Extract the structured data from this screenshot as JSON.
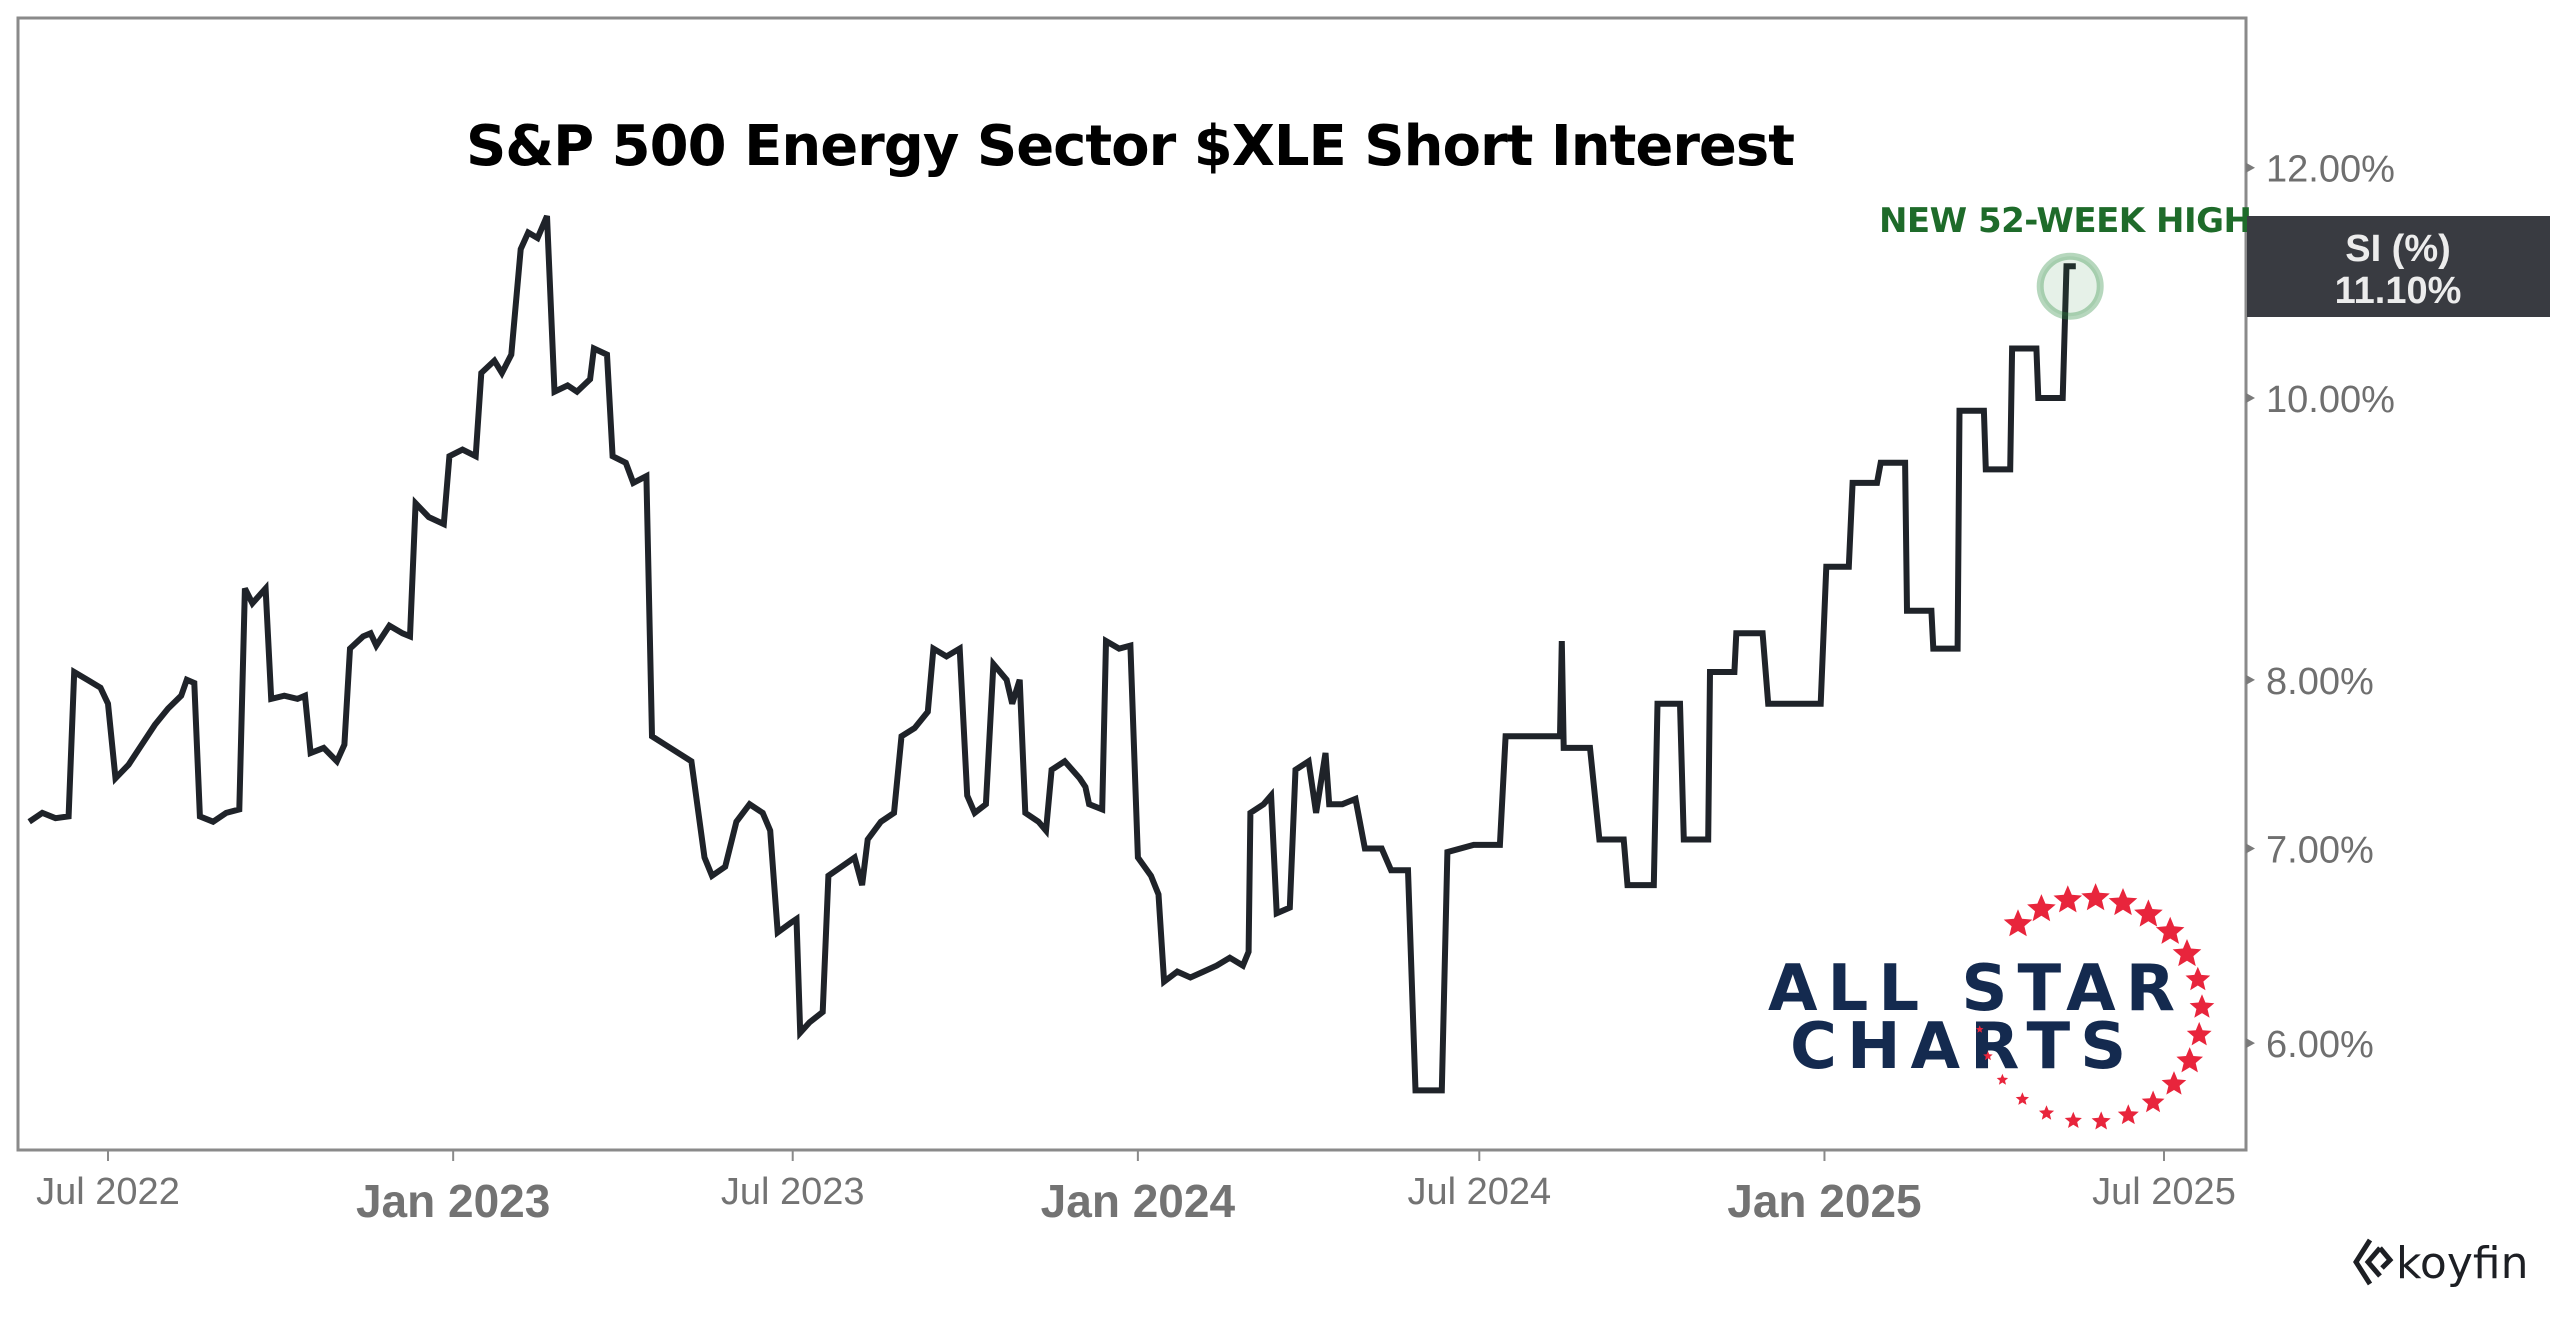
{
  "chart_data": {
    "type": "line",
    "title": "S&P 500 Energy Sector $XLE Short Interest",
    "series": [
      {
        "name": "SI (%)",
        "color": "#1f2329",
        "points": [
          [
            "2022-05-20",
            7.15
          ],
          [
            "2022-05-27",
            7.2
          ],
          [
            "2022-06-03",
            7.17
          ],
          [
            "2022-06-10",
            7.18
          ],
          [
            "2022-06-13",
            8.05
          ],
          [
            "2022-06-20",
            8.0
          ],
          [
            "2022-06-27",
            7.95
          ],
          [
            "2022-07-01",
            7.85
          ],
          [
            "2022-07-05",
            7.4
          ],
          [
            "2022-07-12",
            7.48
          ],
          [
            "2022-07-19",
            7.6
          ],
          [
            "2022-07-26",
            7.72
          ],
          [
            "2022-08-02",
            7.82
          ],
          [
            "2022-08-09",
            7.9
          ],
          [
            "2022-08-12",
            8.0
          ],
          [
            "2022-08-16",
            7.98
          ],
          [
            "2022-08-19",
            7.18
          ],
          [
            "2022-08-26",
            7.15
          ],
          [
            "2022-09-02",
            7.2
          ],
          [
            "2022-09-09",
            7.22
          ],
          [
            "2022-09-12",
            8.6
          ],
          [
            "2022-09-16",
            8.5
          ],
          [
            "2022-09-23",
            8.6
          ],
          [
            "2022-09-26",
            7.88
          ],
          [
            "2022-10-03",
            7.9
          ],
          [
            "2022-10-10",
            7.88
          ],
          [
            "2022-10-14",
            7.9
          ],
          [
            "2022-10-17",
            7.55
          ],
          [
            "2022-10-24",
            7.58
          ],
          [
            "2022-10-31",
            7.5
          ],
          [
            "2022-11-04",
            7.6
          ],
          [
            "2022-11-07",
            8.2
          ],
          [
            "2022-11-14",
            8.28
          ],
          [
            "2022-11-18",
            8.3
          ],
          [
            "2022-11-21",
            8.22
          ],
          [
            "2022-11-28",
            8.35
          ],
          [
            "2022-12-05",
            8.3
          ],
          [
            "2022-12-09",
            8.28
          ],
          [
            "2022-12-12",
            9.2
          ],
          [
            "2022-12-19",
            9.1
          ],
          [
            "2022-12-27",
            9.05
          ],
          [
            "2022-12-30",
            9.55
          ],
          [
            "2023-01-06",
            9.6
          ],
          [
            "2023-01-13",
            9.55
          ],
          [
            "2023-01-16",
            10.2
          ],
          [
            "2023-01-23",
            10.3
          ],
          [
            "2023-01-27",
            10.2
          ],
          [
            "2023-02-01",
            10.35
          ],
          [
            "2023-02-06",
            11.25
          ],
          [
            "2023-02-10",
            11.4
          ],
          [
            "2023-02-15",
            11.35
          ],
          [
            "2023-02-20",
            11.55
          ],
          [
            "2023-02-24",
            10.05
          ],
          [
            "2023-03-03",
            10.1
          ],
          [
            "2023-03-08",
            10.05
          ],
          [
            "2023-03-15",
            10.15
          ],
          [
            "2023-03-17",
            10.4
          ],
          [
            "2023-03-24",
            10.35
          ],
          [
            "2023-03-27",
            9.55
          ],
          [
            "2023-04-03",
            9.5
          ],
          [
            "2023-04-07",
            9.35
          ],
          [
            "2023-04-14",
            9.4
          ],
          [
            "2023-04-17",
            7.65
          ],
          [
            "2023-04-24",
            7.6
          ],
          [
            "2023-05-01",
            7.55
          ],
          [
            "2023-05-08",
            7.5
          ],
          [
            "2023-05-15",
            6.95
          ],
          [
            "2023-05-19",
            6.85
          ],
          [
            "2023-05-26",
            6.9
          ],
          [
            "2023-06-01",
            7.15
          ],
          [
            "2023-06-08",
            7.25
          ],
          [
            "2023-06-15",
            7.2
          ],
          [
            "2023-06-19",
            7.1
          ],
          [
            "2023-06-23",
            6.55
          ],
          [
            "2023-06-30",
            6.6
          ],
          [
            "2023-07-03",
            6.62
          ],
          [
            "2023-07-05",
            6.05
          ],
          [
            "2023-07-10",
            6.1
          ],
          [
            "2023-07-17",
            6.15
          ],
          [
            "2023-07-20",
            6.85
          ],
          [
            "2023-07-27",
            6.9
          ],
          [
            "2023-08-03",
            6.95
          ],
          [
            "2023-08-07",
            6.8
          ],
          [
            "2023-08-10",
            7.05
          ],
          [
            "2023-08-17",
            7.15
          ],
          [
            "2023-08-24",
            7.2
          ],
          [
            "2023-08-28",
            7.65
          ],
          [
            "2023-09-04",
            7.7
          ],
          [
            "2023-09-11",
            7.8
          ],
          [
            "2023-09-14",
            8.2
          ],
          [
            "2023-09-21",
            8.15
          ],
          [
            "2023-09-28",
            8.2
          ],
          [
            "2023-10-02",
            7.3
          ],
          [
            "2023-10-06",
            7.2
          ],
          [
            "2023-10-12",
            7.25
          ],
          [
            "2023-10-16",
            8.1
          ],
          [
            "2023-10-23",
            8.0
          ],
          [
            "2023-10-26",
            7.85
          ],
          [
            "2023-10-30",
            8.0
          ],
          [
            "2023-11-02",
            7.2
          ],
          [
            "2023-11-09",
            7.15
          ],
          [
            "2023-11-13",
            7.1
          ],
          [
            "2023-11-16",
            7.45
          ],
          [
            "2023-11-23",
            7.5
          ],
          [
            "2023-12-01",
            7.4
          ],
          [
            "2023-12-04",
            7.35
          ],
          [
            "2023-12-06",
            7.25
          ],
          [
            "2023-12-13",
            7.22
          ],
          [
            "2023-12-15",
            8.25
          ],
          [
            "2023-12-22",
            8.2
          ],
          [
            "2023-12-28",
            8.22
          ],
          [
            "2024-01-01",
            6.95
          ],
          [
            "2024-01-08",
            6.85
          ],
          [
            "2024-01-12",
            6.75
          ],
          [
            "2024-01-15",
            6.3
          ],
          [
            "2024-01-22",
            6.35
          ],
          [
            "2024-01-29",
            6.32
          ],
          [
            "2024-02-05",
            6.35
          ],
          [
            "2024-02-12",
            6.38
          ],
          [
            "2024-02-19",
            6.42
          ],
          [
            "2024-02-26",
            6.38
          ],
          [
            "2024-02-29",
            6.45
          ],
          [
            "2024-03-01",
            7.2
          ],
          [
            "2024-03-08",
            7.25
          ],
          [
            "2024-03-12",
            7.3
          ],
          [
            "2024-03-15",
            6.65
          ],
          [
            "2024-03-22",
            6.68
          ],
          [
            "2024-03-25",
            7.45
          ],
          [
            "2024-04-01",
            7.5
          ],
          [
            "2024-04-05",
            7.2
          ],
          [
            "2024-04-10",
            7.55
          ],
          [
            "2024-04-12",
            7.25
          ],
          [
            "2024-04-19",
            7.25
          ],
          [
            "2024-04-26",
            7.28
          ],
          [
            "2024-05-01",
            7.0
          ],
          [
            "2024-05-10",
            7.0
          ],
          [
            "2024-05-15",
            6.88
          ],
          [
            "2024-05-24",
            6.88
          ],
          [
            "2024-05-28",
            5.78
          ],
          [
            "2024-06-11",
            5.78
          ],
          [
            "2024-06-14",
            6.98
          ],
          [
            "2024-06-28",
            7.02
          ],
          [
            "2024-07-01",
            7.02
          ],
          [
            "2024-07-12",
            7.02
          ],
          [
            "2024-07-15",
            7.65
          ],
          [
            "2024-08-13",
            7.65
          ],
          [
            "2024-08-14",
            8.25
          ],
          [
            "2024-08-15",
            7.58
          ],
          [
            "2024-08-29",
            7.58
          ],
          [
            "2024-09-03",
            7.05
          ],
          [
            "2024-09-16",
            7.05
          ],
          [
            "2024-09-18",
            6.8
          ],
          [
            "2024-10-02",
            6.8
          ],
          [
            "2024-10-04",
            7.85
          ],
          [
            "2024-10-16",
            7.85
          ],
          [
            "2024-10-18",
            7.05
          ],
          [
            "2024-10-31",
            7.05
          ],
          [
            "2024-11-01",
            8.05
          ],
          [
            "2024-11-14",
            8.05
          ],
          [
            "2024-11-15",
            8.3
          ],
          [
            "2024-11-29",
            8.3
          ],
          [
            "2024-12-02",
            7.85
          ],
          [
            "2024-12-30",
            7.85
          ],
          [
            "2025-01-02",
            8.75
          ],
          [
            "2025-01-14",
            8.75
          ],
          [
            "2025-01-16",
            9.35
          ],
          [
            "2025-01-29",
            9.35
          ],
          [
            "2025-01-31",
            9.5
          ],
          [
            "2025-02-13",
            9.5
          ],
          [
            "2025-02-14",
            8.45
          ],
          [
            "2025-02-27",
            8.45
          ],
          [
            "2025-02-28",
            8.2
          ],
          [
            "2025-03-13",
            8.2
          ],
          [
            "2025-03-14",
            9.9
          ],
          [
            "2025-03-27",
            9.9
          ],
          [
            "2025-03-28",
            9.45
          ],
          [
            "2025-04-10",
            9.45
          ],
          [
            "2025-04-11",
            10.4
          ],
          [
            "2025-04-24",
            10.4
          ],
          [
            "2025-04-25",
            10.0
          ],
          [
            "2025-05-08",
            10.0
          ],
          [
            "2025-05-10",
            11.1
          ],
          [
            "2025-05-15",
            11.1
          ]
        ]
      }
    ],
    "yaxis": {
      "scale": "log",
      "range": [
        5.5,
        13.0
      ],
      "ticks": [
        6,
        7,
        8,
        10,
        12
      ],
      "tick_labels": [
        "6.00%",
        "7.00%",
        "8.00%",
        "10.00%",
        "12.00%"
      ],
      "position": "right"
    },
    "xaxis": {
      "range": [
        "2022-05-19",
        "2025-08-05"
      ],
      "ticks": [
        {
          "date": "2022-07-01",
          "label": "Jul 2022",
          "major": false
        },
        {
          "date": "2023-01-01",
          "label": "Jan 2023",
          "major": true
        },
        {
          "date": "2023-07-01",
          "label": "Jul 2023",
          "major": false
        },
        {
          "date": "2024-01-01",
          "label": "Jan 2024",
          "major": true
        },
        {
          "date": "2024-07-01",
          "label": "Jul 2024",
          "major": false
        },
        {
          "date": "2025-01-01",
          "label": "Jan 2025",
          "major": true
        },
        {
          "date": "2025-07-01",
          "label": "Jul 2025",
          "major": false
        }
      ]
    },
    "grid": false,
    "last_value_label": {
      "name": "SI (%)",
      "value": "11.10%",
      "y": 11.1
    },
    "annotations": [
      {
        "text": "NEW 52-WEEK HIGH",
        "date": "2025-05-12",
        "y": 11.1,
        "color": "#1e6b2a",
        "marker": "circle"
      }
    ]
  },
  "branding": {
    "logo_line1": "ALL STAR",
    "logo_line2": "CHARTS",
    "logo_text_color": "#142a4f",
    "logo_star_color": "#e8253c",
    "footer_brand": "koyfin"
  }
}
